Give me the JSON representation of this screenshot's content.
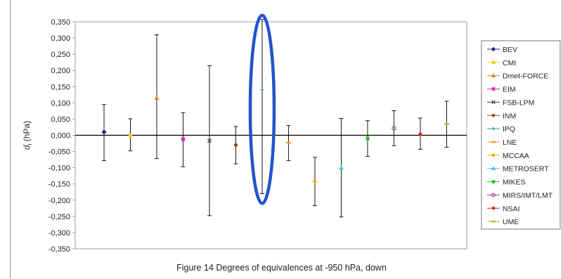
{
  "chart_data": {
    "type": "scatter",
    "title": "",
    "xlabel": "",
    "ylabel": "d",
    "ylabel_sub": "i",
    "ylabel_unit": "(hPa)",
    "ylim": [
      -0.35,
      0.35
    ],
    "ytick_step": 0.05,
    "ytick_labels": [
      "0,350",
      "0,300",
      "0,250",
      "0,200",
      "0,150",
      "0,100",
      "0,050",
      "0,000",
      "-0,050",
      "-0,100",
      "-0,150",
      "-0,200",
      "-0,250",
      "-0,300",
      "-0,350"
    ],
    "grid": false,
    "legend_position": "right",
    "series": [
      {
        "name": "BEV",
        "value": 0.01,
        "lower": -0.078,
        "upper": 0.095,
        "color": "#1f2a6e",
        "marker": "diamond"
      },
      {
        "name": "CMI",
        "value": 0.0,
        "lower": -0.048,
        "upper": 0.051,
        "color": "#f2d020",
        "marker": "square"
      },
      {
        "name": "Dmet-FORCE",
        "value": 0.115,
        "lower": -0.072,
        "upper": 0.31,
        "color": "#e08a20",
        "marker": "triangle"
      },
      {
        "name": "EIM",
        "value": -0.012,
        "lower": -0.097,
        "upper": 0.07,
        "color": "#e020c0",
        "marker": "square"
      },
      {
        "name": "FSB-LPM",
        "value": -0.017,
        "lower": -0.248,
        "upper": 0.215,
        "color": "#444444",
        "marker": "cross"
      },
      {
        "name": "INM",
        "value": -0.03,
        "lower": -0.088,
        "upper": 0.027,
        "color": "#8a4a20",
        "marker": "circle"
      },
      {
        "name": "IPQ",
        "value": 0.14,
        "lower": -0.18,
        "upper": 0.357,
        "color": "#20a0a0",
        "marker": "plus"
      },
      {
        "name": "LNE",
        "value": -0.023,
        "lower": -0.078,
        "upper": 0.03,
        "color": "#f0a030",
        "marker": "dash"
      },
      {
        "name": "MCCAA",
        "value": -0.142,
        "lower": -0.217,
        "upper": -0.068,
        "color": "#f0b000",
        "marker": "circle"
      },
      {
        "name": "METROSERT",
        "value": -0.1,
        "lower": -0.252,
        "upper": 0.052,
        "color": "#40c8e0",
        "marker": "triangle"
      },
      {
        "name": "MIKES",
        "value": -0.01,
        "lower": -0.065,
        "upper": 0.045,
        "color": "#30c030",
        "marker": "square"
      },
      {
        "name": "MIRS/IMT/LMT",
        "value": 0.022,
        "lower": -0.032,
        "upper": 0.076,
        "color": "#9a4a8a",
        "marker": "open-circle"
      },
      {
        "name": "NSAI",
        "value": 0.003,
        "lower": -0.043,
        "upper": 0.053,
        "color": "#e02020",
        "marker": "circle"
      },
      {
        "name": "UME",
        "value": 0.035,
        "lower": -0.037,
        "upper": 0.105,
        "color": "#b0c020",
        "marker": "dash"
      }
    ],
    "highlight": {
      "series": "IPQ",
      "shape": "ellipse",
      "color": "#2255cc"
    }
  },
  "caption": "Figure 14 Degrees of equivalences at -950 hPa, down"
}
